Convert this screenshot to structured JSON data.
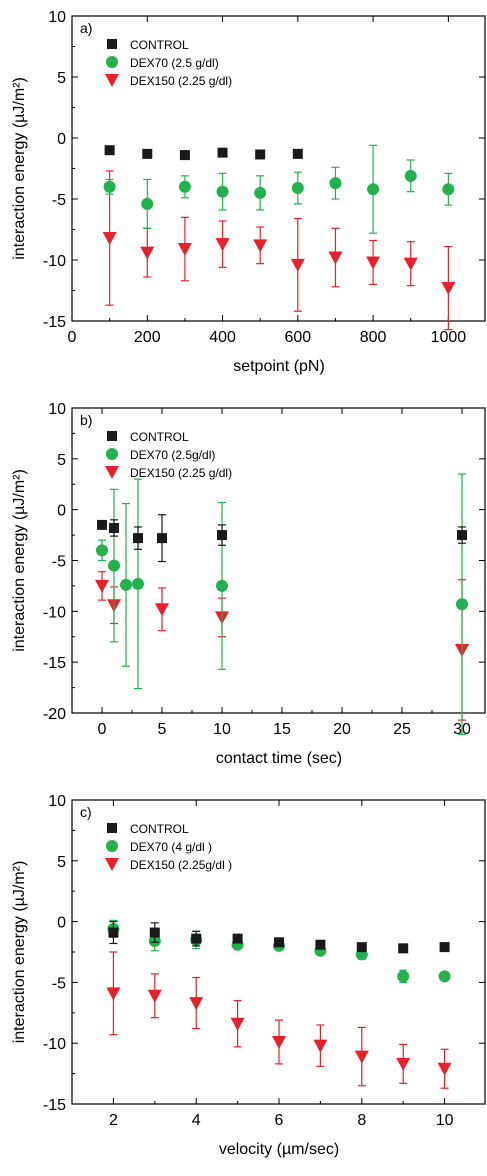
{
  "colors": {
    "control": "#1a1a1a",
    "dex70": "#22b24c",
    "dex150": "#e8202a",
    "axis": "#000000"
  },
  "chart_data": [
    {
      "type": "scatter",
      "panel": "a)",
      "xlabel": "setpoint (pN)",
      "ylabel": "interaction energy (µJ/m²)",
      "xlim": [
        0,
        1100
      ],
      "ylim": [
        -15,
        10
      ],
      "xticks": [
        0,
        200,
        400,
        600,
        800,
        1000
      ],
      "yticks": [
        -15,
        -10,
        -5,
        0,
        5,
        10
      ],
      "grid": false,
      "legend_position": "top-left",
      "series": [
        {
          "name": "CONTROL",
          "marker": "square",
          "color": "#1a1a1a",
          "x": [
            100,
            200,
            300,
            400,
            500,
            600
          ],
          "y": [
            -1.0,
            -1.3,
            -1.4,
            -1.2,
            -1.35,
            -1.3
          ],
          "err": [
            0,
            0,
            0,
            0,
            0,
            0
          ]
        },
        {
          "name": "DEX70 (2.5 g/dl)",
          "marker": "circle",
          "color": "#22b24c",
          "x": [
            100,
            200,
            300,
            400,
            500,
            600,
            700,
            800,
            900,
            1000
          ],
          "y": [
            -4.0,
            -5.4,
            -4.0,
            -4.4,
            -4.5,
            -4.1,
            -3.7,
            -4.2,
            -3.1,
            -4.2
          ],
          "err": [
            0.6,
            2.0,
            0.9,
            1.5,
            1.4,
            1.3,
            1.3,
            3.6,
            1.3,
            1.3
          ]
        },
        {
          "name": "DEX150 (2.25 g/dl)",
          "marker": "triangle-down",
          "color": "#e8202a",
          "x": [
            100,
            200,
            300,
            400,
            500,
            600,
            700,
            800,
            900,
            1000
          ],
          "y": [
            -8.2,
            -9.4,
            -9.1,
            -8.7,
            -8.8,
            -10.4,
            -9.8,
            -10.2,
            -10.3,
            -12.3
          ],
          "err": [
            5.5,
            2.0,
            2.6,
            1.9,
            1.5,
            3.8,
            2.4,
            1.8,
            1.8,
            3.4
          ]
        }
      ]
    },
    {
      "type": "scatter",
      "panel": "b)",
      "xlabel": "contact time (sec)",
      "ylabel": "interaction energy (µJ/m²)",
      "xlim": [
        -2.5,
        32
      ],
      "ylim": [
        -20,
        10
      ],
      "xticks": [
        0,
        5,
        10,
        15,
        20,
        25,
        30
      ],
      "yticks": [
        -20,
        -15,
        -10,
        -5,
        0,
        5,
        10
      ],
      "grid": false,
      "legend_position": "top-left",
      "series": [
        {
          "name": "CONTROL",
          "marker": "square",
          "color": "#1a1a1a",
          "x": [
            0,
            1,
            3,
            5,
            10,
            30
          ],
          "y": [
            -1.5,
            -1.8,
            -2.8,
            -2.8,
            -2.5,
            -2.5
          ],
          "err": [
            0.4,
            0.8,
            1.1,
            2.3,
            1.0,
            0.8
          ]
        },
        {
          "name": "DEX70 (2.5g/dl)",
          "marker": "circle",
          "color": "#22b24c",
          "x": [
            0,
            1,
            2,
            3,
            10,
            30
          ],
          "y": [
            -4.0,
            -5.5,
            -7.4,
            -7.3,
            -7.5,
            -9.3
          ],
          "err": [
            1.0,
            7.5,
            8.0,
            10.3,
            8.2,
            12.8
          ]
        },
        {
          "name": "DEX150 (2.25 g/dl)",
          "marker": "triangle-down",
          "color": "#e8202a",
          "x": [
            0,
            1,
            5,
            10,
            30
          ],
          "y": [
            -7.5,
            -9.4,
            -9.8,
            -10.6,
            -13.8
          ],
          "err": [
            1.4,
            1.8,
            2.1,
            1.9,
            6.9
          ]
        }
      ]
    },
    {
      "type": "scatter",
      "panel": "c)",
      "xlabel": "velocity (µm/sec)",
      "ylabel": "interaction energy (µJ/m²)",
      "xlim": [
        1,
        11
      ],
      "ylim": [
        -15,
        10
      ],
      "xticks": [
        2,
        4,
        6,
        8,
        10
      ],
      "yticks": [
        -15,
        -10,
        -5,
        0,
        5,
        10
      ],
      "grid": false,
      "legend_position": "top-left",
      "series": [
        {
          "name": "CONTROL",
          "marker": "square",
          "color": "#1a1a1a",
          "x": [
            2,
            3,
            4,
            5,
            6,
            7,
            8,
            9,
            10
          ],
          "y": [
            -0.9,
            -0.9,
            -1.4,
            -1.4,
            -1.7,
            -1.9,
            -2.1,
            -2.2,
            -2.1
          ],
          "err": [
            0.9,
            0.8,
            0.6,
            0.2,
            0.2,
            0.2,
            0.2,
            0.2,
            0.2
          ]
        },
        {
          "name": "DEX70 (4 g/dl )",
          "marker": "circle",
          "color": "#22b24c",
          "x": [
            2,
            3,
            4,
            5,
            6,
            7,
            8,
            9,
            10
          ],
          "y": [
            -0.6,
            -1.6,
            -1.5,
            -1.9,
            -2.0,
            -2.4,
            -2.7,
            -4.5,
            -4.5
          ],
          "err": [
            0.7,
            0.8,
            0.7,
            0.3,
            0.3,
            0.3,
            0.4,
            0.5,
            0.3
          ]
        },
        {
          "name": "DEX150 (2.25g/dl )",
          "marker": "triangle-down",
          "color": "#e8202a",
          "x": [
            2,
            3,
            4,
            5,
            6,
            7,
            8,
            9,
            10
          ],
          "y": [
            -5.9,
            -6.1,
            -6.7,
            -8.4,
            -9.9,
            -10.2,
            -11.1,
            -11.7,
            -12.1
          ],
          "err": [
            3.4,
            1.8,
            2.1,
            1.9,
            1.8,
            1.7,
            2.4,
            1.6,
            1.6
          ]
        }
      ]
    }
  ]
}
